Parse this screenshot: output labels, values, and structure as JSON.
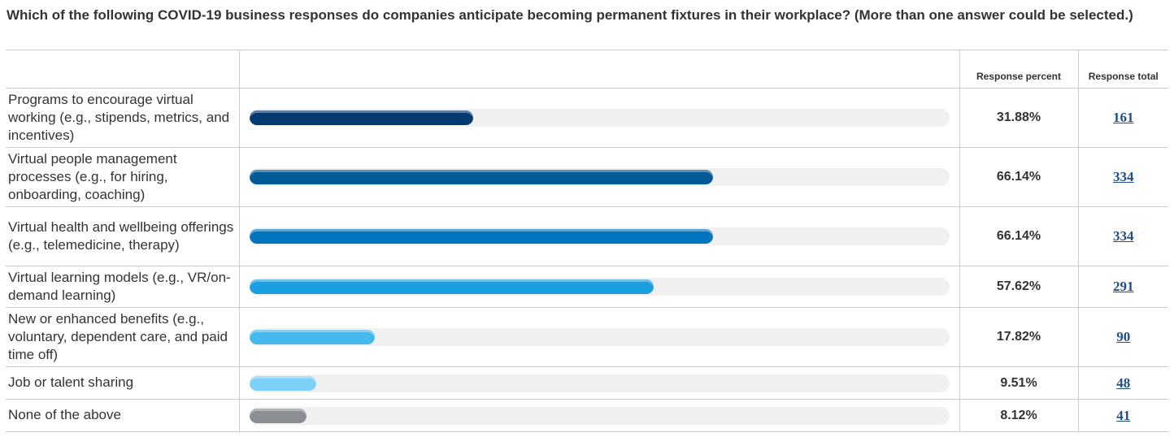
{
  "question": "Which of the following COVID-19 business responses do companies anticipate becoming permanent fixtures in their workplace? (More than one answer could be selected.)",
  "headers": {
    "percent": "Response percent",
    "total": "Response total"
  },
  "chart_data": {
    "type": "bar",
    "orientation": "horizontal",
    "xlim": [
      0,
      100
    ],
    "categories": [
      "Programs to encourage virtual working (e.g., stipends, metrics, and incentives)",
      "Virtual people management processes (e.g., for hiring, onboarding, coaching)",
      "Virtual health and wellbeing offerings (e.g., telemedicine, therapy)",
      "Virtual learning models (e.g., VR/on-demand learning)",
      "New or enhanced benefits (e.g., voluntary, dependent care, and paid time off)",
      "Job or talent sharing",
      "None of the above"
    ],
    "values": [
      31.88,
      66.14,
      66.14,
      57.62,
      17.82,
      9.51,
      8.12
    ],
    "percent_labels": [
      "31.88%",
      "66.14%",
      "66.14%",
      "57.62%",
      "17.82%",
      "9.51%",
      "8.12%"
    ],
    "totals": [
      "161",
      "334",
      "334",
      "291",
      "90",
      "48",
      "41"
    ],
    "colors": [
      "#003a70",
      "#005a96",
      "#0075bd",
      "#1a9fe0",
      "#45b8ec",
      "#7dd0f7",
      "#8a8d91"
    ]
  }
}
